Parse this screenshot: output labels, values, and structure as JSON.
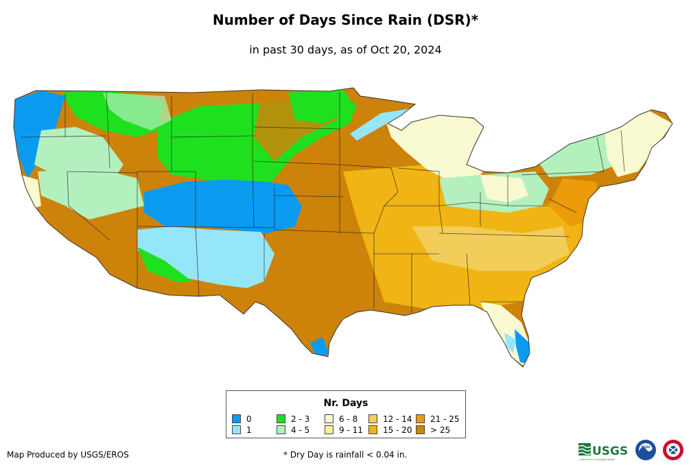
{
  "title": "Number of Days Since Rain (DSR)*",
  "subtitle": "in past 30 days, as of Oct 20, 2024",
  "legend": {
    "title": "Nr. Days",
    "items": [
      {
        "label": "0",
        "color": "#0a9bf0"
      },
      {
        "label": "1",
        "color": "#96e6fa"
      },
      {
        "label": "2 - 3",
        "color": "#1fe01f"
      },
      {
        "label": "4 - 5",
        "color": "#b4f0be"
      },
      {
        "label": "6 - 8",
        "color": "#fafad2"
      },
      {
        "label": "9 - 11",
        "color": "#f7f096"
      },
      {
        "label": "12 - 14",
        "color": "#f2cd5a"
      },
      {
        "label": "15 - 20",
        "color": "#f0b414"
      },
      {
        "label": "21 - 25",
        "color": "#ec9b0a"
      },
      {
        "label": "> 25",
        "color": "#cd820a"
      }
    ]
  },
  "credit": "Map Produced by USGS/EROS",
  "footnote": "* Dry Day is rainfall < 0.04 in.",
  "logos": {
    "usgs": "USGS",
    "usgs_tagline": "science for a changing world",
    "noaa": "NOAA"
  }
}
